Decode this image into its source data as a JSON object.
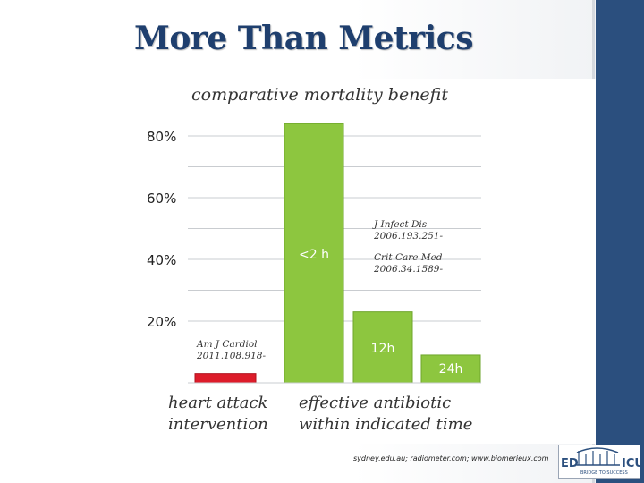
{
  "slide": {
    "title": "More Than Metrics",
    "source_text": "sydney.edu.au; radiometer.com; www.biomerieux.com",
    "logo_text": "ED BRIDGE TO SUCCESS ICU",
    "colors": {
      "title": "#1f3f6e",
      "accent_bar": "#2b4f7e"
    }
  },
  "chart_data": {
    "type": "bar",
    "title": "comparative mortality benefit",
    "xlabel": "",
    "ylabel": "",
    "ylim": [
      0,
      85
    ],
    "yticks": [
      20,
      40,
      60,
      80
    ],
    "ytick_labels": [
      "20%",
      "40%",
      "60%",
      "80%"
    ],
    "grid": true,
    "bars": [
      {
        "value": 3,
        "label": "",
        "color": "#dd1c2a",
        "group": "heart attack intervention"
      },
      {
        "value": 84,
        "label": "<2 h",
        "color": "#8dc63f",
        "group": "effective antibiotic within indicated time"
      },
      {
        "value": 23,
        "label": "12h",
        "color": "#8dc63f",
        "group": "effective antibiotic within indicated time"
      },
      {
        "value": 9,
        "label": "24h",
        "color": "#8dc63f",
        "group": "effective antibiotic within indicated time"
      }
    ],
    "group_labels": [
      {
        "line1": "heart attack",
        "line2": "intervention"
      },
      {
        "line1": "effective antibiotic",
        "line2": "within indicated time"
      }
    ],
    "annotations": [
      {
        "line1": "Am J Cardiol",
        "line2": "2011.108.918-"
      },
      {
        "line1": "J Infect Dis",
        "line2": "2006.193.251-"
      },
      {
        "line1": "Crit Care Med",
        "line2": "2006.34.1589-"
      }
    ]
  }
}
